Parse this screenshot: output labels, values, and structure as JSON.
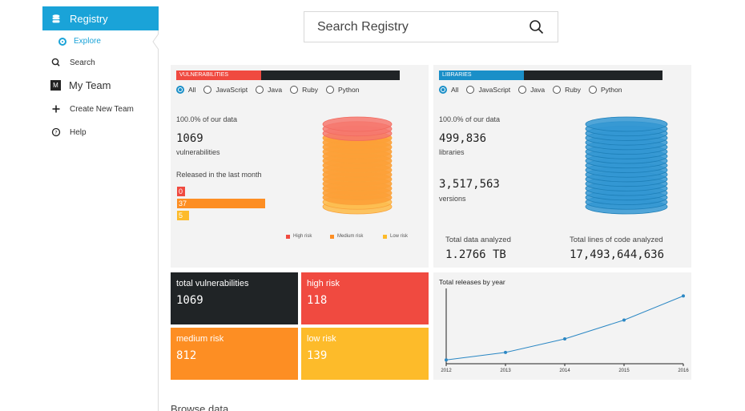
{
  "sidebar": {
    "registry_label": "Registry",
    "explore_label": "Explore",
    "search_label": "Search",
    "team_badge": "M",
    "team_label": "My Team",
    "create_team_label": "Create New Team",
    "help_label": "Help"
  },
  "search": {
    "placeholder": "Search Registry"
  },
  "vulnerabilities": {
    "tab_label": "VULNERABILITIES",
    "filters": [
      "All",
      "JavaScript",
      "Java",
      "Ruby",
      "Python"
    ],
    "selected_filter": "All",
    "coverage_text": "100.0% of our data",
    "count": "1069",
    "count_unit": "vulnerabilities",
    "released_label": "Released in the last month",
    "released": [
      {
        "label": "0",
        "value": 0,
        "color": "#f04a40"
      },
      {
        "label": "37",
        "value": 37,
        "color": "#fd8e23"
      },
      {
        "label": "5",
        "value": 5,
        "color": "#fdbb2a"
      }
    ],
    "legend": [
      {
        "label": "High risk",
        "color": "#f04a40"
      },
      {
        "label": "Medium risk",
        "color": "#fd8e23"
      },
      {
        "label": "Low risk",
        "color": "#fdbb2a"
      }
    ]
  },
  "libraries": {
    "tab_label": "LIBRARIES",
    "filters": [
      "All",
      "JavaScript",
      "Java",
      "Ruby",
      "Python"
    ],
    "selected_filter": "All",
    "coverage_text": "100.0% of our data",
    "libraries_count": "499,836",
    "libraries_unit": "libraries",
    "versions_count": "3,517,563",
    "versions_unit": "versions",
    "data_analyzed_label": "Total data analyzed",
    "data_analyzed_value": "1.2766 TB",
    "lines_analyzed_label": "Total lines of code analyzed",
    "lines_analyzed_value": "17,493,644,636"
  },
  "tiles": {
    "total": {
      "label": "total vulnerabilities",
      "value": "1069",
      "color": "#202426"
    },
    "high": {
      "label": "high risk",
      "value": "118",
      "color": "#f04a40"
    },
    "medium": {
      "label": "medium risk",
      "value": "812",
      "color": "#fd8e23"
    },
    "low": {
      "label": "low risk",
      "value": "139",
      "color": "#fdbb2a"
    }
  },
  "colors": {
    "accent": "#1aa3d8",
    "tab_vuln": "#f04a40",
    "tab_libs": "#1a8fc8"
  },
  "chart_data": {
    "type": "line",
    "title": "Total releases by year",
    "x": [
      "2012",
      "2013",
      "2014",
      "2015",
      "2016"
    ],
    "series": [
      {
        "values": [
          0.05,
          0.15,
          0.33,
          0.58,
          0.9
        ]
      }
    ],
    "ylim": [
      0,
      1
    ],
    "grid": false
  },
  "browse_label": "Browse data"
}
